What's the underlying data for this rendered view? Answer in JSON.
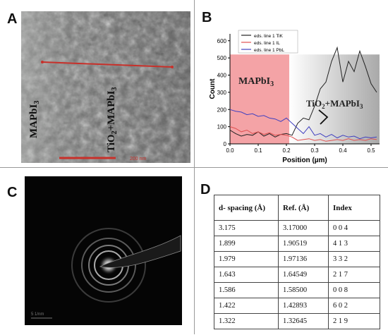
{
  "panels": {
    "a": {
      "label": "A",
      "left_text": "MAPbI",
      "left_sub": "3",
      "right_text": "TiO",
      "right_sub1": "2",
      "right_mid": "+MAPbI",
      "right_sub2": "3",
      "scale_text": "200 nm"
    },
    "b": {
      "label": "B",
      "left_region": "MAPbI",
      "left_region_sub": "3",
      "right_region": "TiO",
      "right_region_sub1": "2",
      "right_region_mid": "+MAPbI",
      "right_region_sub2": "3"
    },
    "c": {
      "label": "C",
      "scale_text": "5 1/nm"
    },
    "d": {
      "label": "D"
    }
  },
  "table": {
    "headers": [
      "d- spacing (Å)",
      "Ref. (Å)",
      "Index"
    ],
    "rows": [
      [
        "3.175",
        "3.17000",
        "0 0 4"
      ],
      [
        "1.899",
        "1.90519",
        "4 1 3"
      ],
      [
        "1.979",
        "1.97136",
        "3 3 2"
      ],
      [
        "1.643",
        "1.64549",
        "2 1 7"
      ],
      [
        "1.586",
        "1.58500",
        "0 0 8"
      ],
      [
        "1.422",
        "1.42893",
        "6 0 2"
      ],
      [
        "1.322",
        "1.32645",
        "2 1 9"
      ]
    ]
  },
  "chart_data": {
    "type": "line",
    "xlabel": "Position (µm)",
    "ylabel": "Count",
    "xlim": [
      0,
      0.53
    ],
    "ylim": [
      0,
      640
    ],
    "xticks": [
      0.0,
      0.1,
      0.2,
      0.3,
      0.4,
      0.5
    ],
    "yticks": [
      0,
      100,
      200,
      300,
      400,
      500,
      600
    ],
    "legend_position": "top-left",
    "series": [
      {
        "name": "eds. line 1 TiK",
        "color": "#222222",
        "x": [
          0,
          0.02,
          0.04,
          0.06,
          0.08,
          0.1,
          0.12,
          0.14,
          0.16,
          0.18,
          0.2,
          0.22,
          0.24,
          0.26,
          0.28,
          0.3,
          0.32,
          0.34,
          0.36,
          0.38,
          0.4,
          0.42,
          0.44,
          0.46,
          0.48,
          0.5,
          0.52
        ],
        "y": [
          80,
          60,
          45,
          55,
          50,
          70,
          45,
          60,
          40,
          55,
          60,
          50,
          120,
          150,
          140,
          220,
          320,
          360,
          480,
          560,
          360,
          480,
          420,
          540,
          450,
          350,
          300
        ]
      },
      {
        "name": "eds. line 1 IL",
        "color": "#e05050",
        "x": [
          0,
          0.02,
          0.04,
          0.06,
          0.08,
          0.1,
          0.12,
          0.14,
          0.16,
          0.18,
          0.2,
          0.22,
          0.24,
          0.26,
          0.28,
          0.3,
          0.32,
          0.34,
          0.36,
          0.38,
          0.4,
          0.42,
          0.44,
          0.46,
          0.48,
          0.5,
          0.52
        ],
        "y": [
          100,
          90,
          70,
          80,
          60,
          70,
          55,
          65,
          50,
          55,
          50,
          40,
          20,
          25,
          30,
          20,
          25,
          15,
          20,
          25,
          20,
          30,
          20,
          25,
          20,
          30,
          25
        ]
      },
      {
        "name": "eds. line 1 PbL",
        "color": "#4040c0",
        "x": [
          0,
          0.02,
          0.04,
          0.06,
          0.08,
          0.1,
          0.12,
          0.14,
          0.16,
          0.18,
          0.2,
          0.22,
          0.24,
          0.26,
          0.28,
          0.3,
          0.32,
          0.34,
          0.36,
          0.38,
          0.4,
          0.42,
          0.44,
          0.46,
          0.48,
          0.5,
          0.52
        ],
        "y": [
          200,
          190,
          185,
          170,
          175,
          160,
          165,
          150,
          145,
          130,
          150,
          120,
          90,
          60,
          100,
          50,
          60,
          40,
          55,
          35,
          50,
          40,
          45,
          30,
          40,
          35,
          40
        ]
      }
    ]
  }
}
